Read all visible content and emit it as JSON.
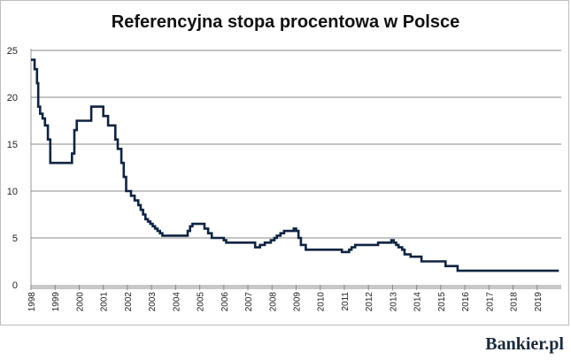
{
  "chart_data": {
    "type": "line",
    "title": "Referencyjna stopa procentowa w Polsce",
    "xlabel": "",
    "ylabel": "",
    "ylim": [
      0,
      25
    ],
    "yticks": [
      "0",
      "5",
      "10",
      "15",
      "20",
      "25"
    ],
    "xlim": [
      1998,
      2020
    ],
    "xticks": [
      "1998",
      "1999",
      "2000",
      "2001",
      "2002",
      "2003",
      "2004",
      "2005",
      "2006",
      "2007",
      "2008",
      "2009",
      "2010",
      "2011",
      "2012",
      "2013",
      "2014",
      "2015",
      "2016",
      "2017",
      "2018",
      "2019"
    ],
    "grid": "horizontal",
    "colors": {
      "line": "#0f2440",
      "grid": "#888888",
      "axis": "#c8c8c8"
    },
    "series": [
      {
        "step": true,
        "x": [
          1998.0,
          1998.15,
          1998.25,
          1998.3,
          1998.38,
          1998.48,
          1998.58,
          1998.7,
          1998.8,
          1998.9,
          1999.7,
          1999.8,
          1999.9,
          2000.25,
          2000.5,
          2000.7,
          2001.0,
          2001.2,
          2001.3,
          2001.5,
          2001.6,
          2001.75,
          2001.85,
          2001.95,
          2002.05,
          2002.15,
          2002.3,
          2002.45,
          2002.55,
          2002.65,
          2002.75,
          2002.85,
          2002.95,
          2003.05,
          2003.15,
          2003.25,
          2003.35,
          2003.45,
          2003.55,
          2003.7,
          2004.5,
          2004.6,
          2004.7,
          2005.1,
          2005.2,
          2005.35,
          2005.5,
          2006.0,
          2006.1,
          2007.3,
          2007.5,
          2007.7,
          2007.95,
          2008.1,
          2008.2,
          2008.35,
          2008.5,
          2008.9,
          2009.0,
          2009.1,
          2009.2,
          2009.4,
          2010.9,
          2011.05,
          2011.2,
          2011.3,
          2011.45,
          2012.4,
          2012.85,
          2012.95,
          2013.05,
          2013.15,
          2013.25,
          2013.4,
          2013.5,
          2013.75,
          2014.2,
          2014.8,
          2015.2,
          2015.7,
          2019.9
        ],
        "values": [
          24.0,
          23.0,
          21.5,
          19.0,
          18.25,
          17.75,
          17.0,
          15.5,
          13.0,
          13.0,
          14.0,
          16.5,
          17.5,
          17.5,
          19.0,
          19.0,
          18.0,
          17.0,
          17.0,
          15.5,
          14.5,
          13.0,
          11.5,
          10.0,
          10.0,
          9.5,
          9.0,
          8.5,
          8.0,
          7.5,
          7.0,
          6.75,
          6.5,
          6.25,
          6.0,
          5.75,
          5.5,
          5.25,
          5.25,
          5.25,
          5.75,
          6.25,
          6.5,
          6.5,
          6.0,
          5.5,
          5.0,
          4.75,
          4.5,
          4.0,
          4.25,
          4.5,
          4.75,
          5.0,
          5.25,
          5.5,
          5.75,
          6.0,
          5.75,
          5.0,
          4.25,
          3.75,
          3.5,
          3.5,
          3.75,
          4.0,
          4.25,
          4.5,
          4.5,
          4.75,
          4.5,
          4.25,
          4.0,
          3.75,
          3.25,
          3.0,
          2.5,
          2.5,
          2.0,
          1.5,
          1.5
        ]
      }
    ]
  },
  "branding": {
    "logo_text": "Bankier.pl"
  }
}
